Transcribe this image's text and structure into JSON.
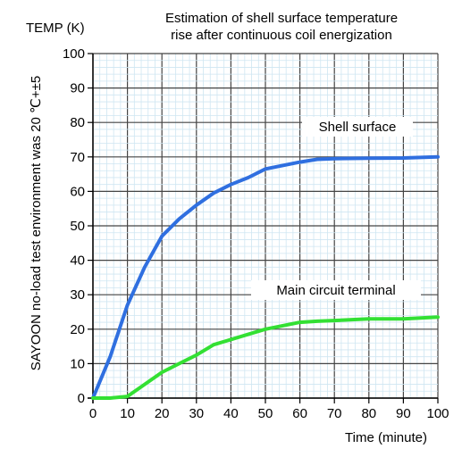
{
  "chart_data": {
    "type": "line",
    "title_lines": [
      "Estimation of shell surface temperature",
      "rise after continuous coil energization"
    ],
    "ylabel": "TEMP (K)",
    "xlabel": "Time (minute)",
    "side_note": "SAYOON no-load test environment was 20 ℃+±5",
    "xlim": [
      0,
      100
    ],
    "ylim": [
      0,
      100
    ],
    "x_ticks": [
      0,
      10,
      20,
      30,
      40,
      50,
      60,
      70,
      80,
      90,
      100
    ],
    "y_ticks": [
      0,
      10,
      20,
      30,
      40,
      50,
      60,
      70,
      80,
      90,
      100
    ],
    "grid": true,
    "series": [
      {
        "name": "Shell surface",
        "color": "#2f6fe0",
        "x": [
          0,
          5,
          10,
          15,
          20,
          25,
          30,
          35,
          40,
          45,
          50,
          55,
          60,
          65,
          70,
          80,
          90,
          100
        ],
        "y": [
          0,
          12,
          27,
          38,
          47,
          52,
          56,
          59.5,
          62,
          64,
          66.5,
          67.5,
          68.5,
          69.3,
          69.5,
          69.6,
          69.7,
          70
        ]
      },
      {
        "name": "Main circuit terminal",
        "color": "#33e033",
        "x": [
          0,
          5,
          10,
          15,
          20,
          25,
          30,
          35,
          40,
          45,
          50,
          55,
          60,
          65,
          70,
          80,
          90,
          100
        ],
        "y": [
          0,
          0,
          0.5,
          4,
          7.5,
          10,
          12.5,
          15.5,
          17,
          18.5,
          20,
          21,
          22,
          22.3,
          22.5,
          23,
          23,
          23.5
        ]
      }
    ]
  }
}
